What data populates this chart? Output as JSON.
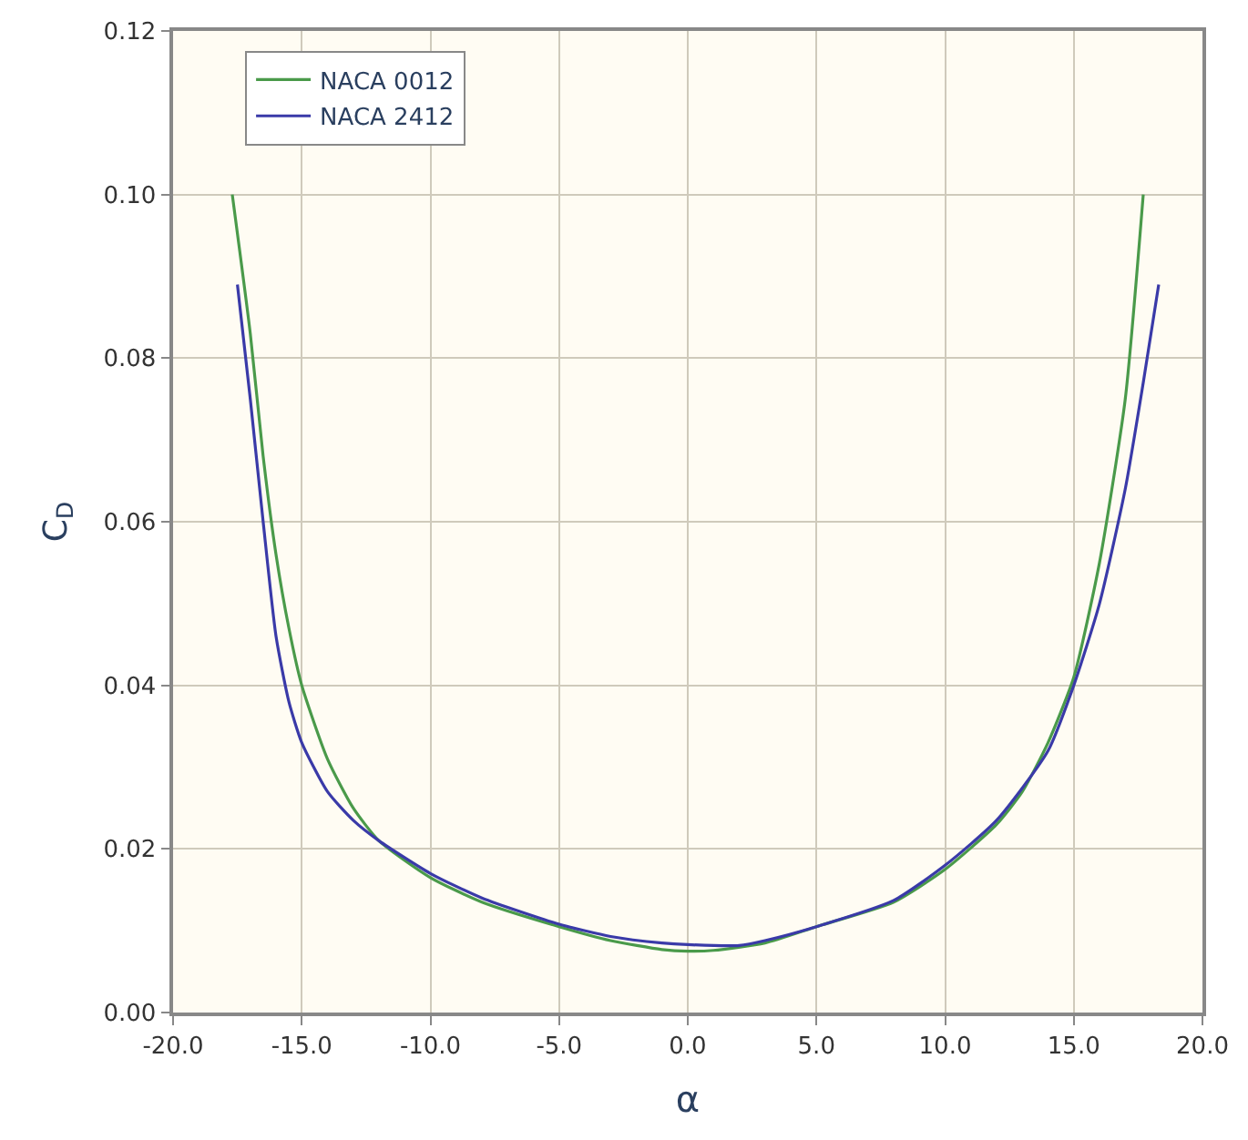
{
  "chart_data": {
    "type": "line",
    "xlabel": "α",
    "ylabel": "C$_{D}$",
    "xlim": [
      -20,
      20
    ],
    "ylim": [
      0,
      0.12
    ],
    "xticks": [
      {
        "value": -20,
        "label": "-20.0"
      },
      {
        "value": -15,
        "label": "-15.0"
      },
      {
        "value": -10,
        "label": "-10.0"
      },
      {
        "value": -5,
        "label": "-5.0"
      },
      {
        "value": 0,
        "label": "0.0"
      },
      {
        "value": 5,
        "label": "5.0"
      },
      {
        "value": 10,
        "label": "10.0"
      },
      {
        "value": 15,
        "label": "15.0"
      },
      {
        "value": 20,
        "label": "20.0"
      }
    ],
    "yticks": [
      {
        "value": 0,
        "label": "0.00"
      },
      {
        "value": 0.02,
        "label": "0.02"
      },
      {
        "value": 0.04,
        "label": "0.04"
      },
      {
        "value": 0.06,
        "label": "0.06"
      },
      {
        "value": 0.08,
        "label": "0.08"
      },
      {
        "value": 0.1,
        "label": "0.10"
      },
      {
        "value": 0.12,
        "label": "0.12"
      }
    ],
    "grid": true,
    "legend": "top left",
    "marker": "none",
    "line_style": "solid",
    "series": [
      {
        "name": "NACA 0012",
        "color": "#4a9a4a",
        "x": [
          -17.7,
          -17,
          -16.5,
          -16,
          -15.5,
          -15,
          -14,
          -13,
          -12,
          -10,
          -8,
          -5,
          -3,
          -1,
          0,
          1,
          3,
          5,
          8,
          10,
          12,
          13,
          14,
          15,
          16,
          17,
          17.7
        ],
        "values": [
          0.1,
          0.083,
          0.068,
          0.056,
          0.047,
          0.04,
          0.031,
          0.025,
          0.021,
          0.0165,
          0.0135,
          0.0105,
          0.0088,
          0.0077,
          0.0075,
          0.0076,
          0.0085,
          0.0105,
          0.0135,
          0.0175,
          0.023,
          0.027,
          0.033,
          0.041,
          0.055,
          0.075,
          0.1
        ]
      },
      {
        "name": "NACA 2412",
        "color": "#3a3aa8",
        "x": [
          -17.5,
          -17,
          -16.5,
          -16,
          -15.5,
          -15,
          -14,
          -13,
          -12,
          -10,
          -8,
          -5,
          -3,
          -1,
          0,
          2,
          3,
          5,
          8,
          10,
          12,
          14,
          15,
          16,
          17,
          17.7,
          18.3
        ],
        "values": [
          0.089,
          0.075,
          0.06,
          0.046,
          0.038,
          0.033,
          0.027,
          0.0235,
          0.021,
          0.017,
          0.014,
          0.0108,
          0.0093,
          0.0085,
          0.0083,
          0.0082,
          0.0088,
          0.0105,
          0.0137,
          0.018,
          0.0235,
          0.032,
          0.04,
          0.05,
          0.064,
          0.077,
          0.089
        ]
      }
    ]
  }
}
